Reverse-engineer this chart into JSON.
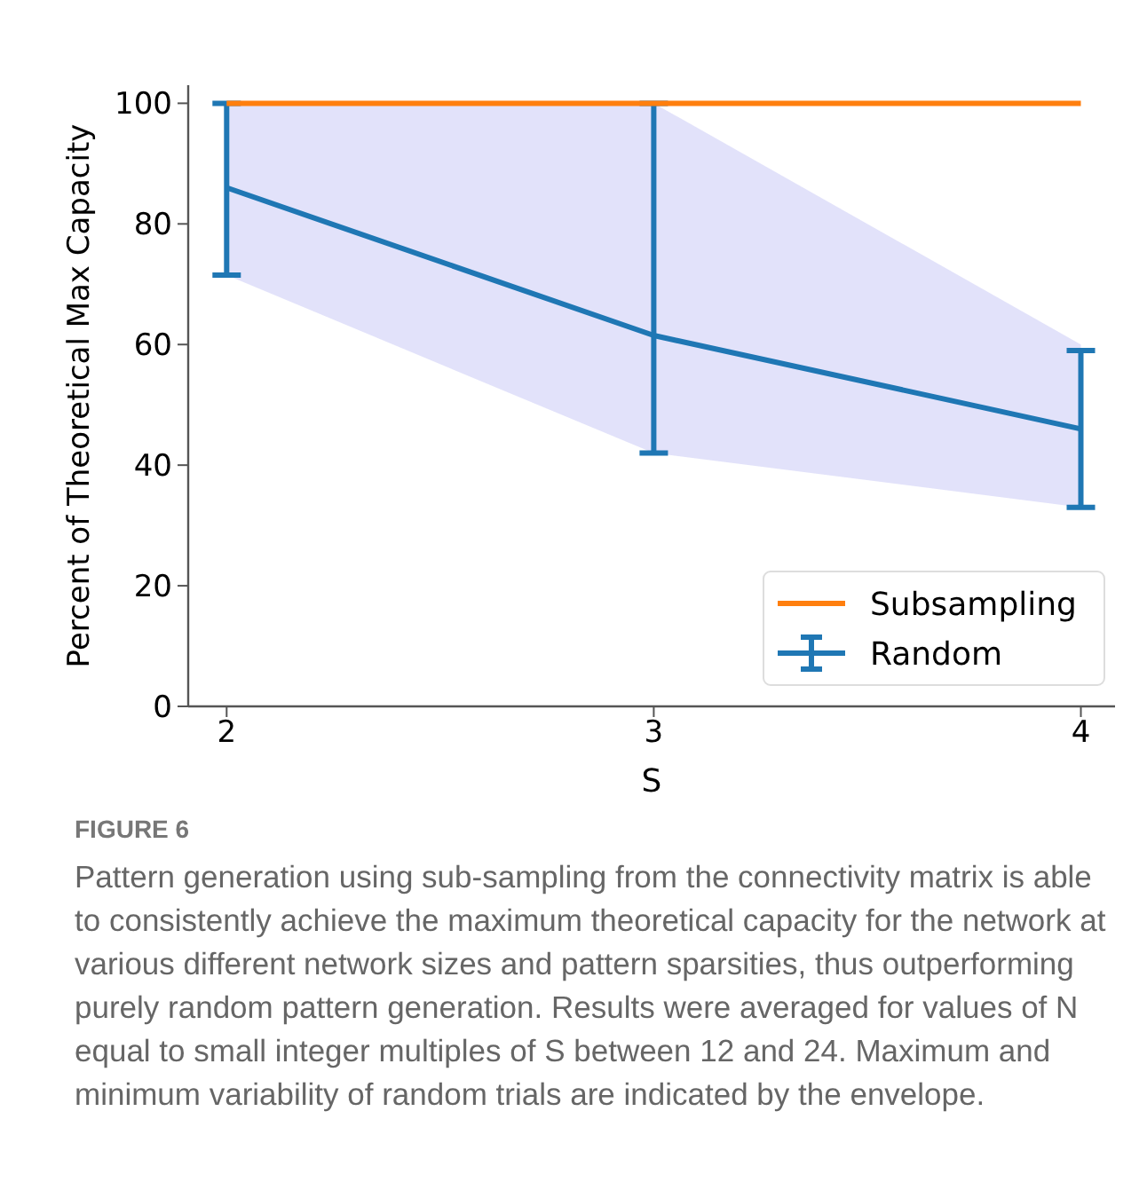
{
  "chart_data": {
    "type": "line",
    "xlabel": "S",
    "ylabel": "Percent of Theoretical Max Capacity",
    "x": [
      2,
      3,
      4
    ],
    "xlim": [
      1.91,
      4.08
    ],
    "xticks": [
      2,
      3,
      4
    ],
    "ylim": [
      0,
      103
    ],
    "yticks": [
      0,
      20,
      40,
      60,
      80,
      100
    ],
    "grid": false,
    "legend": "bottom right",
    "marker": "none",
    "line_style": "solid",
    "series": [
      {
        "name": "Subsampling",
        "color": "#ff7f0e",
        "values": [
          100,
          100,
          100
        ]
      },
      {
        "name": "Random",
        "color": "#1f77b4",
        "values": [
          86,
          61.5,
          46
        ],
        "errors": [
          [
            71.5,
            100
          ],
          [
            42,
            100
          ],
          [
            33,
            59
          ]
        ],
        "lower": [
          71.5,
          42,
          33
        ],
        "upper": [
          100,
          100,
          60
        ]
      }
    ],
    "annotations": [
      "FIGURE 6",
      "Pattern generation using sub-sampling from the connectivity matrix is able to consistently achieve the maximum theoretical capacity for the network at various different network sizes and pattern sparsities, thus outperforming purely random pattern generation. Results were averaged for values of N equal to small integer multiples of S between 12 and 24. Maximum and minimum variability of random trials are indicated by the envelope."
    ]
  }
}
